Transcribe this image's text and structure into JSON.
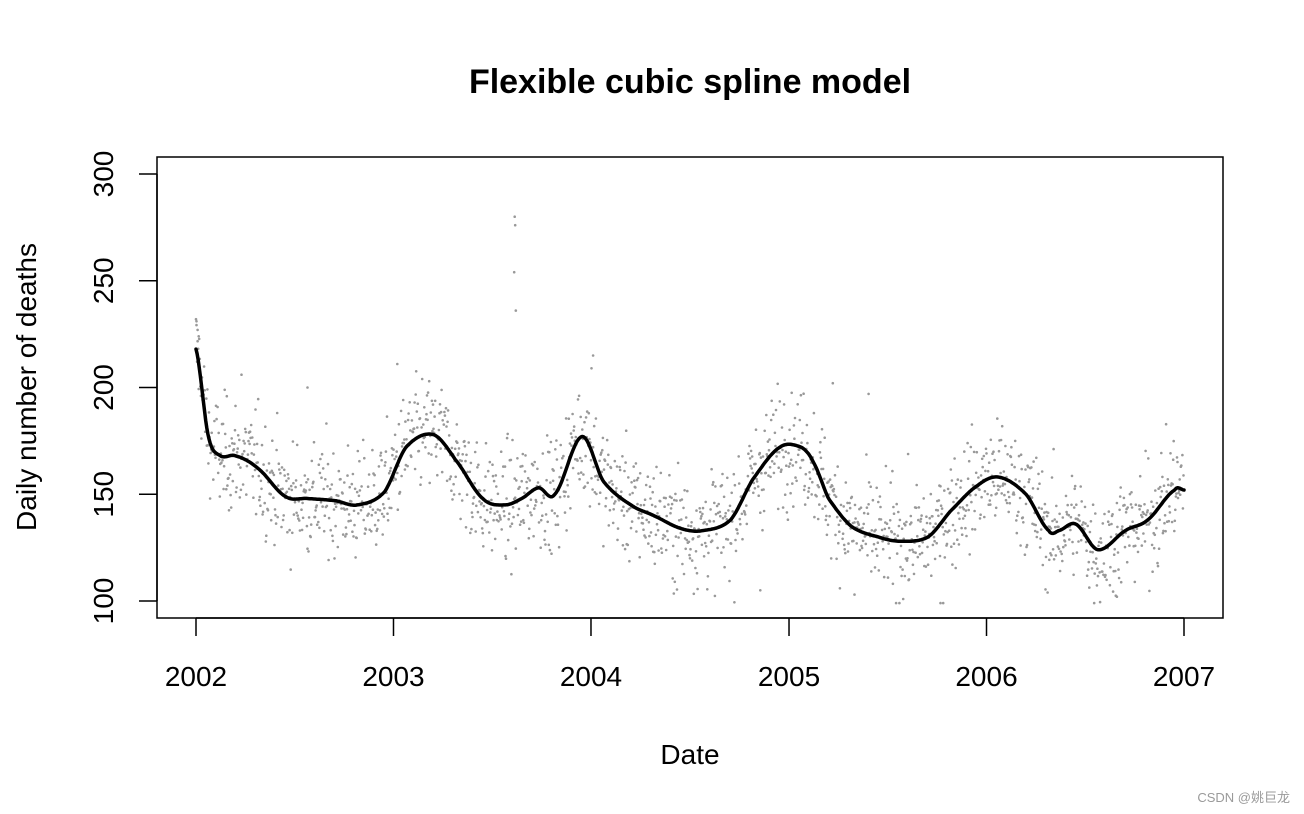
{
  "chart_data": {
    "type": "scatter",
    "title": "Flexible cubic spline model",
    "xlabel": "Date",
    "ylabel": "Daily number of deaths",
    "xlim": [
      "2002-01-01",
      "2007-01-01"
    ],
    "ylim": [
      100,
      300
    ],
    "x_ticks": [
      "2002",
      "2003",
      "2004",
      "2005",
      "2006",
      "2007"
    ],
    "y_ticks": [
      100,
      150,
      200,
      250,
      300
    ],
    "grid": false,
    "colors": {
      "points": "#999999",
      "fit_line": "#000000",
      "axes": "#000000"
    },
    "series": [
      {
        "kind": "fitted-spline",
        "x": [
          "2002-01-01",
          "2002-01-24",
          "2002-02-15",
          "2002-03-15",
          "2002-04-26",
          "2002-06-15",
          "2002-07-26",
          "2002-09-15",
          "2002-10-26",
          "2002-12-15",
          "2003-01-24",
          "2003-03-15",
          "2003-04-26",
          "2003-06-15",
          "2003-07-26",
          "2003-08-26",
          "2003-09-26",
          "2003-10-26",
          "2003-12-15",
          "2004-01-24",
          "2004-03-15",
          "2004-04-26",
          "2004-06-15",
          "2004-07-26",
          "2004-09-15",
          "2004-10-26",
          "2004-12-15",
          "2005-01-24",
          "2005-02-15",
          "2005-03-15",
          "2005-04-26",
          "2005-06-15",
          "2005-07-26",
          "2005-09-15",
          "2005-10-26",
          "2005-12-15",
          "2006-01-24",
          "2006-03-15",
          "2006-04-26",
          "2006-05-15",
          "2006-06-15",
          "2006-07-26",
          "2006-09-15",
          "2006-10-26",
          "2006-12-15",
          "2007-01-01"
        ],
        "y": [
          218,
          177,
          168,
          168,
          162,
          149,
          148,
          147,
          145,
          151,
          172,
          178,
          166,
          148,
          145,
          148,
          153,
          150,
          177,
          156,
          145,
          140,
          134,
          133,
          138,
          157,
          172,
          172,
          165,
          148,
          135,
          130,
          128,
          130,
          142,
          154,
          158,
          150,
          133,
          133,
          136,
          124,
          133,
          138,
          152,
          152
        ]
      },
      {
        "kind": "daily-observations",
        "generated_from_fit": true,
        "count": 1826,
        "outliers": [
          {
            "x": "2003-08-13",
            "y": 280
          },
          {
            "x": "2003-08-14",
            "y": 276
          },
          {
            "x": "2003-08-12",
            "y": 254
          },
          {
            "x": "2003-08-15",
            "y": 236
          },
          {
            "x": "2002-01-02",
            "y": 231
          },
          {
            "x": "2002-01-04",
            "y": 227
          },
          {
            "x": "2002-01-06",
            "y": 224
          },
          {
            "x": "2004-01-05",
            "y": 215
          },
          {
            "x": "2003-01-08",
            "y": 211
          },
          {
            "x": "2002-03-26",
            "y": 206
          },
          {
            "x": "2004-01-02",
            "y": 209
          },
          {
            "x": "2005-03-23",
            "y": 202
          },
          {
            "x": "2005-05-28",
            "y": 197
          },
          {
            "x": "2002-07-26",
            "y": 200
          },
          {
            "x": "2005-10-08",
            "y": 99
          },
          {
            "x": "2005-05-02",
            "y": 103
          },
          {
            "x": "2006-08-30",
            "y": 102
          },
          {
            "x": "2004-11-09",
            "y": 105
          }
        ]
      }
    ]
  },
  "watermark": "CSDN @姚巨龙"
}
